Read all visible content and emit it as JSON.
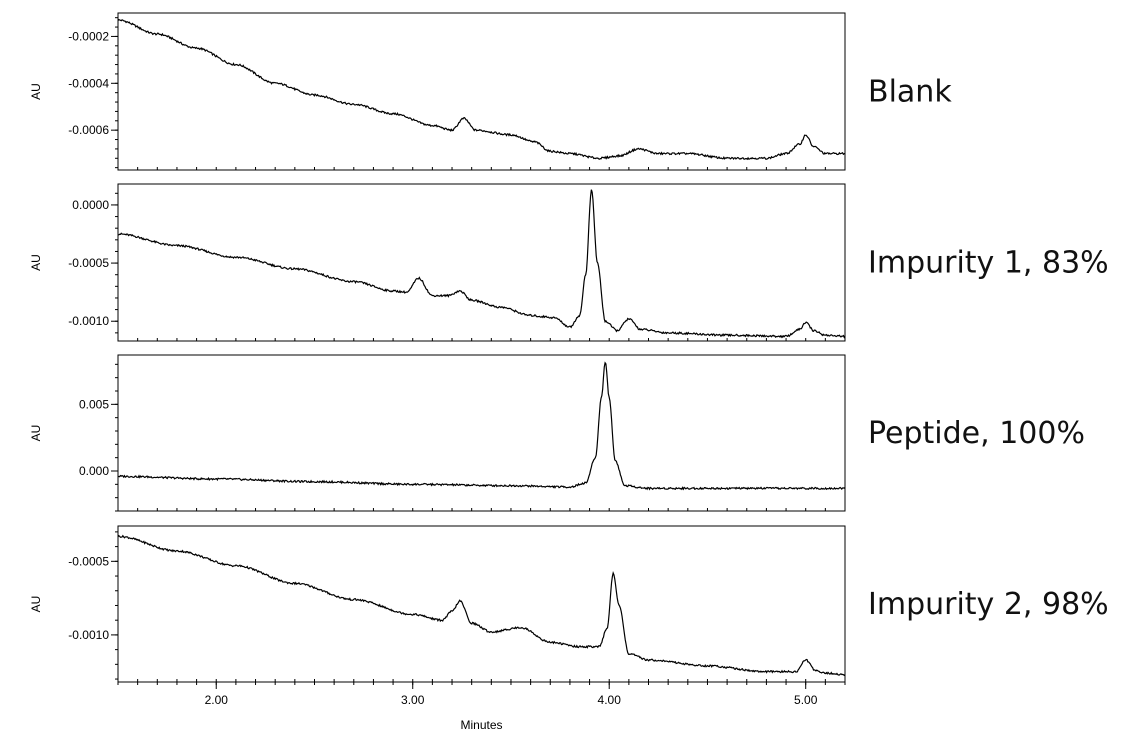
{
  "chart_data": {
    "type": "line",
    "xlabel": "Minutes",
    "xlim": [
      1.5,
      5.2
    ],
    "xticks": [
      2.0,
      3.0,
      4.0,
      5.0
    ],
    "xtick_labels": [
      "2.00",
      "3.00",
      "4.00",
      "5.00"
    ],
    "panels": [
      {
        "label": "Blank",
        "ylabel": "AU",
        "ylim": [
          -0.00077,
          -0.0001
        ],
        "yticks": [
          -0.0002,
          -0.0004,
          -0.0006
        ],
        "ytick_labels": [
          "-0.0002",
          "-0.0004",
          "-0.0006"
        ],
        "series": [
          {
            "x": [
              1.5,
              1.7,
              1.9,
              2.1,
              2.3,
              2.5,
              2.7,
              2.9,
              3.1,
              3.2,
              3.26,
              3.32,
              3.5,
              3.62,
              3.7,
              3.8,
              3.95,
              4.05,
              4.15,
              4.25,
              4.4,
              4.6,
              4.8,
              4.9,
              4.97,
              5.0,
              5.04,
              5.1,
              5.2
            ],
            "y": [
              -0.00013,
              -0.00019,
              -0.00025,
              -0.00032,
              -0.0004,
              -0.00045,
              -0.00049,
              -0.00053,
              -0.00058,
              -0.0006,
              -0.00055,
              -0.0006,
              -0.00062,
              -0.00065,
              -0.00069,
              -0.0007,
              -0.00072,
              -0.00071,
              -0.00068,
              -0.0007,
              -0.0007,
              -0.00072,
              -0.00072,
              -0.0007,
              -0.00066,
              -0.00062,
              -0.00067,
              -0.0007,
              -0.0007
            ]
          }
        ]
      },
      {
        "label": "Impurity 1, 83%",
        "ylabel": "AU",
        "ylim": [
          -0.00117,
          0.00018
        ],
        "yticks": [
          0.0,
          -0.0005,
          -0.001
        ],
        "ytick_labels": [
          "0.0000",
          "-0.0005",
          "-0.0010"
        ],
        "series": [
          {
            "x": [
              1.5,
              1.8,
              2.1,
              2.4,
              2.7,
              2.9,
              2.97,
              3.03,
              3.1,
              3.18,
              3.24,
              3.3,
              3.45,
              3.6,
              3.66,
              3.72,
              3.8,
              3.85,
              3.88,
              3.91,
              3.94,
              3.98,
              4.04,
              4.1,
              4.16,
              4.3,
              4.6,
              4.9,
              4.97,
              5.0,
              5.04,
              5.1,
              5.2
            ],
            "y": [
              -0.00025,
              -0.00035,
              -0.00045,
              -0.00055,
              -0.00066,
              -0.00074,
              -0.00075,
              -0.00063,
              -0.00078,
              -0.00078,
              -0.00074,
              -0.00082,
              -0.00088,
              -0.00095,
              -0.00096,
              -0.00097,
              -0.00105,
              -0.00095,
              -0.0006,
              0.00013,
              -0.0005,
              -0.001,
              -0.00108,
              -0.00098,
              -0.00107,
              -0.0011,
              -0.00112,
              -0.00113,
              -0.00107,
              -0.00101,
              -0.00108,
              -0.00112,
              -0.00113
            ]
          }
        ]
      },
      {
        "label": "Peptide, 100%",
        "ylabel": "AU",
        "ylim": [
          -0.003,
          0.0087
        ],
        "yticks": [
          0.005,
          0.0
        ],
        "ytick_labels": [
          "0.005",
          "0.000"
        ],
        "series": [
          {
            "x": [
              1.5,
              2.0,
              2.5,
              3.0,
              3.5,
              3.8,
              3.88,
              3.93,
              3.96,
              3.98,
              4.0,
              4.03,
              4.08,
              4.2,
              4.6,
              5.0,
              5.2
            ],
            "y": [
              -0.0004,
              -0.0006,
              -0.0008,
              -0.001,
              -0.0011,
              -0.0012,
              -0.0009,
              0.001,
              0.0055,
              0.0082,
              0.0055,
              0.0008,
              -0.0011,
              -0.0013,
              -0.0013,
              -0.0013,
              -0.0013
            ]
          }
        ]
      },
      {
        "label": "Impurity 2, 98%",
        "ylabel": "AU",
        "ylim": [
          -0.00132,
          -0.00026
        ],
        "yticks": [
          -0.0005,
          -0.001
        ],
        "ytick_labels": [
          "-0.0005",
          "-0.0010"
        ],
        "series": [
          {
            "x": [
              1.5,
              1.8,
              2.1,
              2.4,
              2.7,
              3.0,
              3.15,
              3.2,
              3.24,
              3.3,
              3.4,
              3.55,
              3.7,
              3.85,
              3.95,
              3.99,
              4.02,
              4.05,
              4.1,
              4.2,
              4.5,
              4.8,
              4.95,
              5.0,
              5.05,
              5.1,
              5.2
            ],
            "y": [
              -0.00033,
              -0.00043,
              -0.00053,
              -0.00065,
              -0.00076,
              -0.00086,
              -0.0009,
              -0.00084,
              -0.00077,
              -0.00092,
              -0.00098,
              -0.00095,
              -0.00105,
              -0.00108,
              -0.00108,
              -0.00095,
              -0.00058,
              -0.0008,
              -0.00113,
              -0.00117,
              -0.00121,
              -0.00125,
              -0.00125,
              -0.00117,
              -0.00124,
              -0.00126,
              -0.00127
            ]
          }
        ]
      }
    ]
  }
}
